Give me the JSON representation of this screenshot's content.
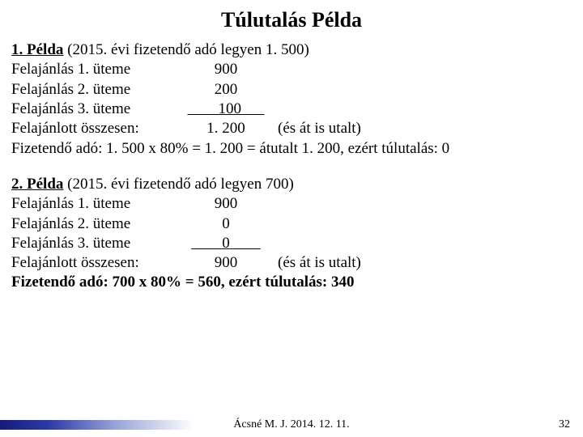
{
  "title": "Túlutalás Példa",
  "example1": {
    "label": "1. Példa",
    "subtitle": " (2015. évi fizetendő adó legyen 1. 500)",
    "rows": [
      {
        "label": "Felajánlás 1. üteme",
        "value": "900"
      },
      {
        "label": "Felajánlás 2. üteme",
        "value": "200"
      },
      {
        "label": "Felajánlás 3. üteme",
        "value": "100",
        "underline": true
      }
    ],
    "total_label": "Felajánlott összesen:",
    "total_value": "1. 200",
    "total_suffix": " (és át is utalt)",
    "final": "Fizetendő adó: 1. 500 x 80% = 1. 200 = átutalt 1. 200, ezért túlutalás: 0"
  },
  "example2": {
    "label": "2. Példa",
    "subtitle": " (2015. évi fizetendő adó legyen 700)",
    "rows": [
      {
        "label": "Felajánlás 1. üteme",
        "value": "900"
      },
      {
        "label": "Felajánlás 2. üteme",
        "value": "  0"
      },
      {
        "label": "Felajánlás 3. üteme",
        "value": "0",
        "underline": true
      }
    ],
    "total_label": "Felajánlott összesen:",
    "total_value": "900",
    "total_suffix": " (és át is utalt)",
    "final": "Fizetendő adó: 700 x 80% = 560, ezért túlutalás: 340"
  },
  "footer": {
    "author": "Ácsné M. J. 2014. 12. 11.",
    "page": "32"
  },
  "colors": {
    "background": "#ffffff",
    "text": "#000000",
    "grad_start": "#161b7c",
    "grad_end": "#ffffff"
  }
}
